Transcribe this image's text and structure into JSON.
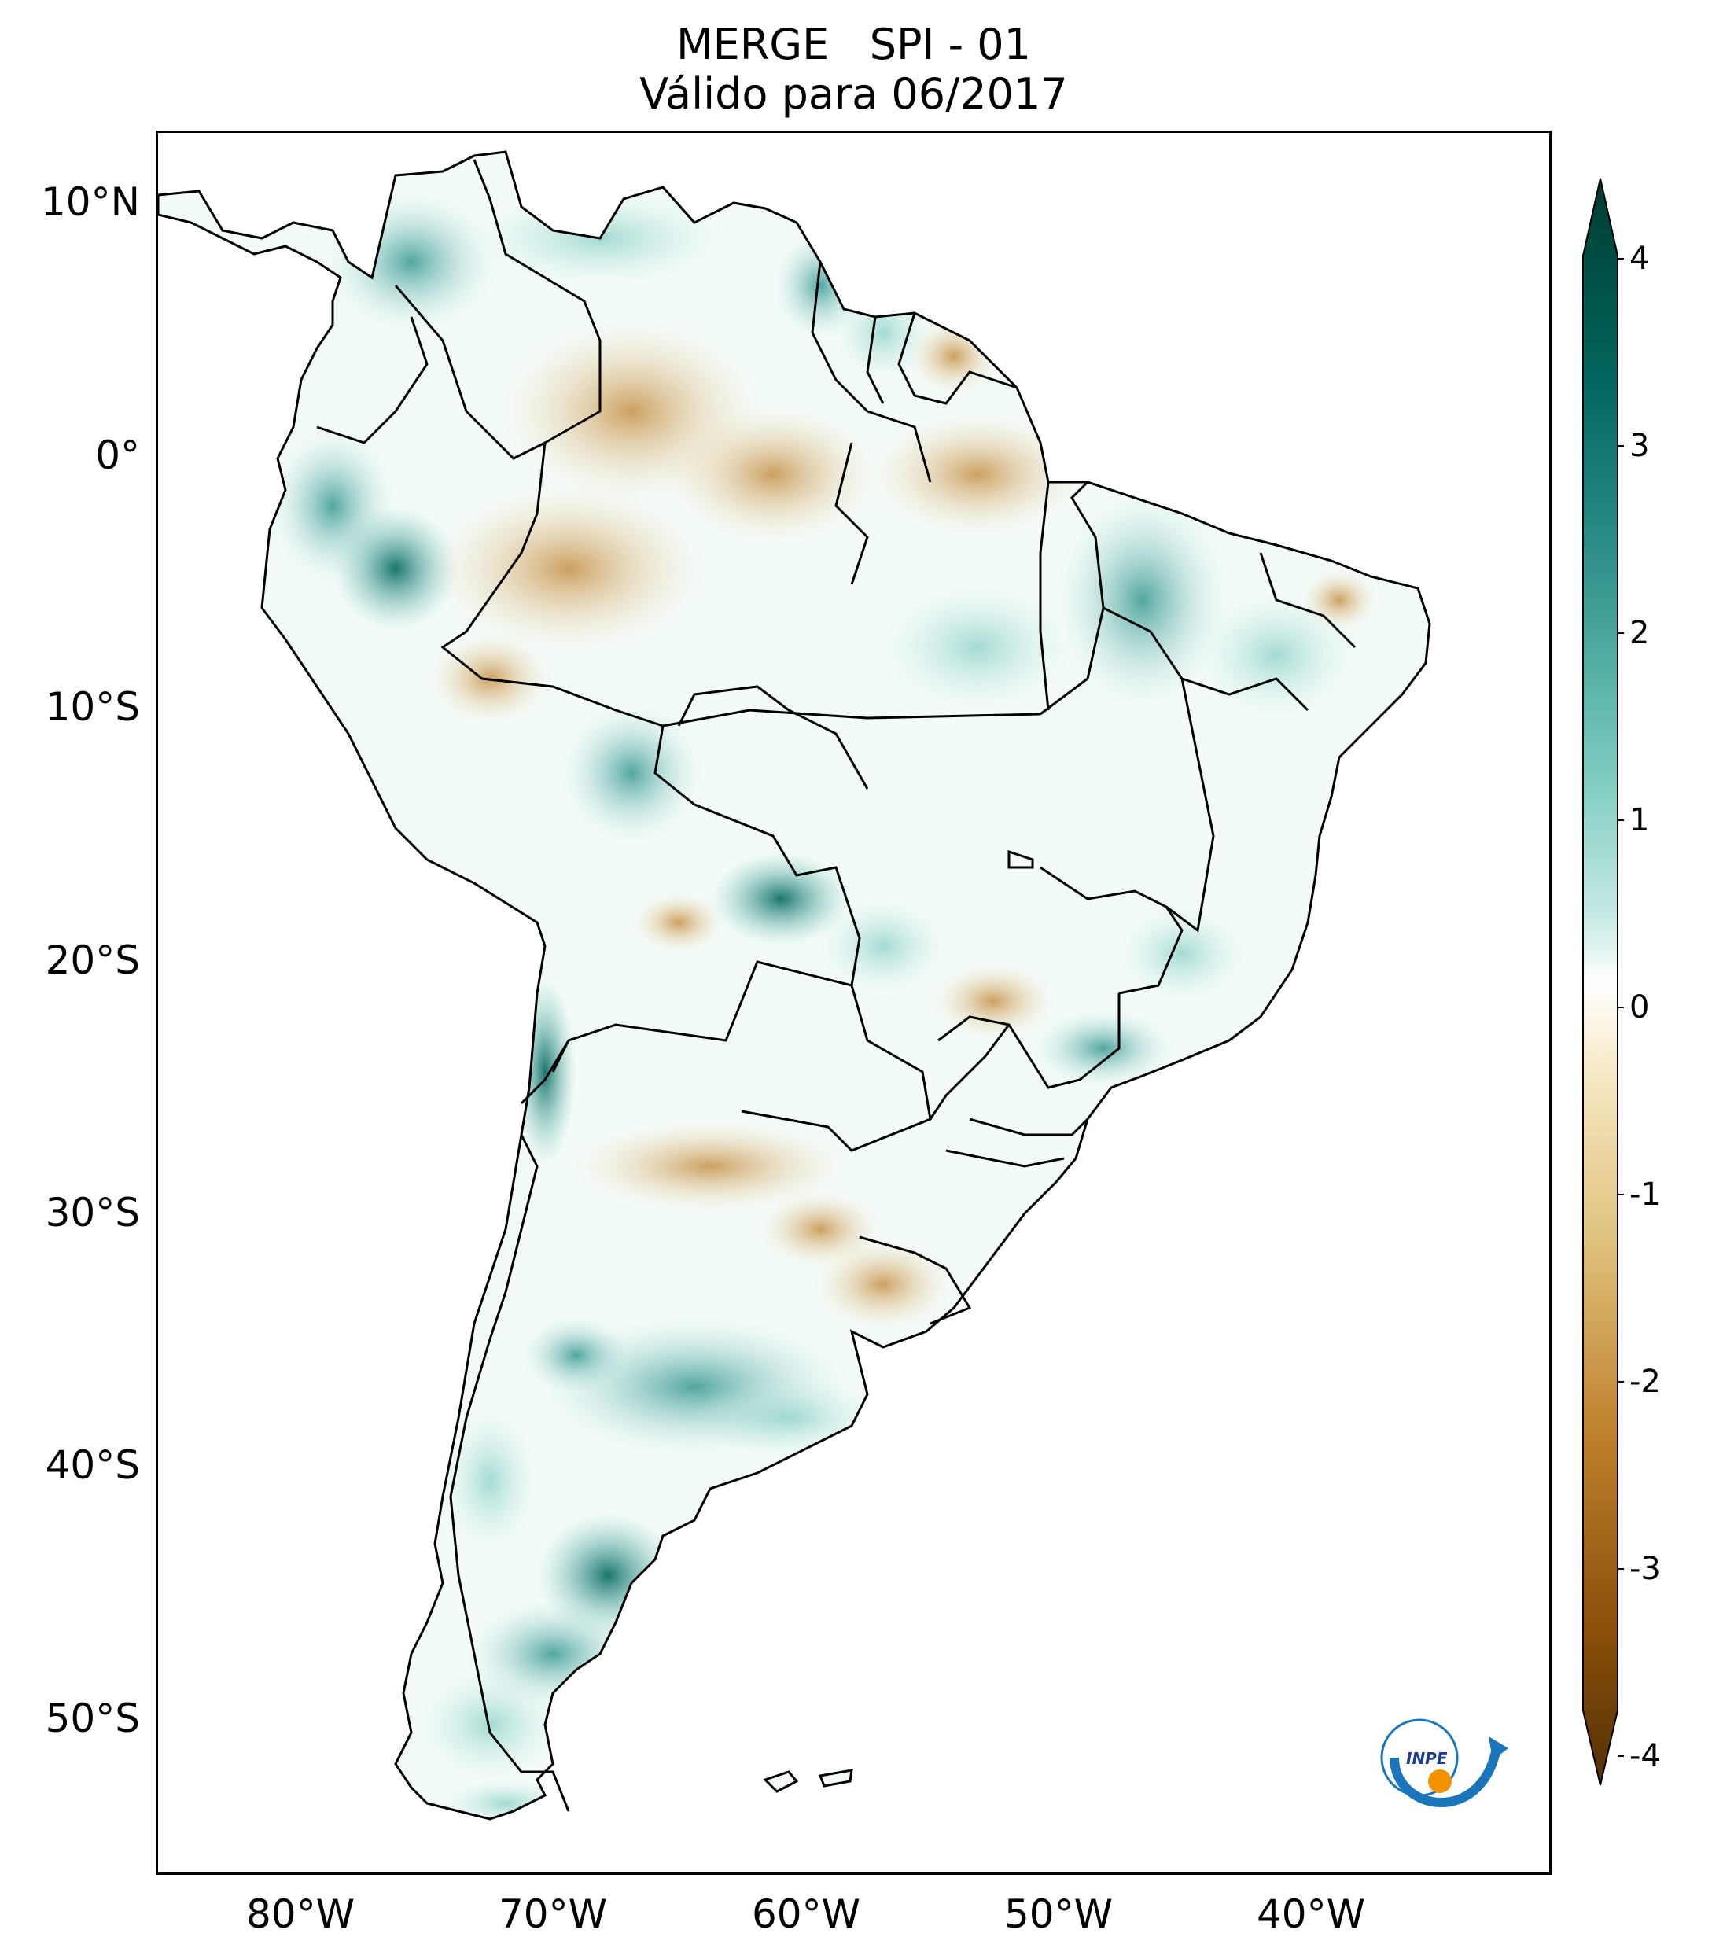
{
  "title": {
    "line1": "MERGE   SPI - 01",
    "line2": "Válido para 06/2017"
  },
  "axes": {
    "lat_labels": [
      "10°N",
      "0°",
      "10°S",
      "20°S",
      "30°S",
      "40°S",
      "50°S"
    ],
    "lon_labels": [
      "80°W",
      "70°W",
      "60°W",
      "50°W",
      "40°W"
    ]
  },
  "colorbar": {
    "ticks": [
      "4",
      "3",
      "2",
      "1",
      "0",
      "-1",
      "-2",
      "-3",
      "-4"
    ],
    "colors": {
      "max": "#003c30",
      "high": "#35978f",
      "mid_high": "#80cdc1",
      "light_high": "#c7eae5",
      "zero": "#ffffff",
      "light_low": "#f6e8c3",
      "mid_low": "#dfc27d",
      "low": "#bf812d",
      "min": "#543005"
    }
  },
  "logo": {
    "text": "INPE"
  }
}
